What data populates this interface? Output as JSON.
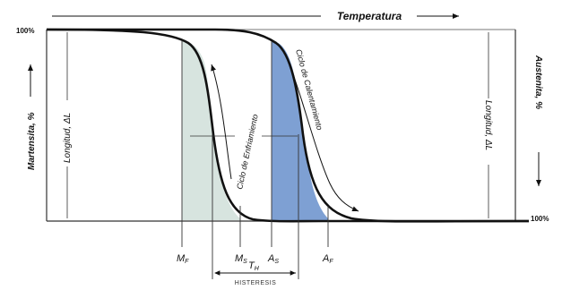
{
  "diagram": {
    "title": "Temperatura",
    "left_axis_label": "Martensita, %",
    "right_axis_label": "Austenita, %",
    "left_percent": "100%",
    "right_percent": "100%",
    "length_left": "Longitud, ΔL",
    "length_right": "Longitud, ΔL",
    "cooling_cycle": "Ciclo de Enfriamiento",
    "heating_cycle": "Ciclo de Calentamiento",
    "temps": {
      "mf": "M",
      "mf_sub": "F",
      "ms": "M",
      "ms_sub": "S",
      "as": "A",
      "as_sub": "S",
      "af": "A",
      "af_sub": "F"
    },
    "th": "T",
    "th_sub": "H",
    "hysteresis": "HISTERESIS",
    "colors": {
      "cooling_fill": "#d7e4df",
      "heating_fill": "#7ea0d3",
      "curve": "#111111"
    }
  }
}
